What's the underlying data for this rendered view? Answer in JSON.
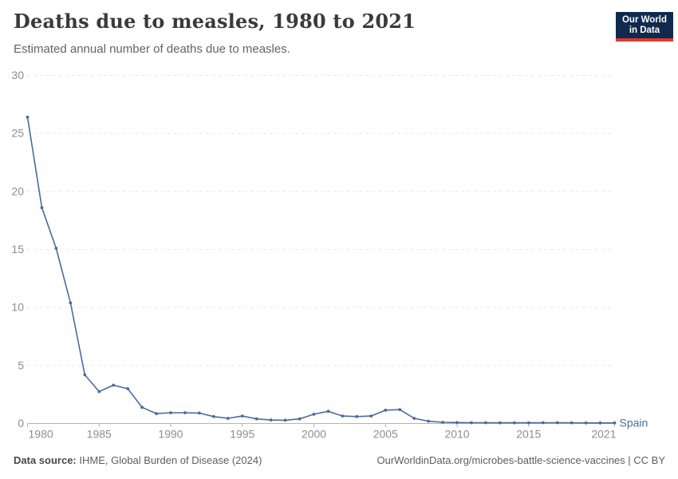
{
  "header": {
    "title": "Deaths due to measles, 1980 to 2021",
    "subtitle": "Estimated annual number of deaths due to measles.",
    "logo": {
      "line1": "Our World",
      "line2": "in Data"
    }
  },
  "chart_data": {
    "type": "line",
    "title": "Deaths due to measles, 1980 to 2021",
    "subtitle": "Estimated annual number of deaths due to measles.",
    "xlabel": "",
    "ylabel": "",
    "xlim": [
      1980,
      2021
    ],
    "ylim": [
      0,
      30
    ],
    "x_ticks": [
      1980,
      1985,
      1990,
      1995,
      2000,
      2005,
      2010,
      2015,
      2021
    ],
    "y_ticks": [
      0,
      5,
      10,
      15,
      20,
      25,
      30
    ],
    "grid": "horizontal-dashed",
    "legend_position": "end-of-line",
    "x": [
      1980,
      1981,
      1982,
      1983,
      1984,
      1985,
      1986,
      1987,
      1988,
      1989,
      1990,
      1991,
      1992,
      1993,
      1994,
      1995,
      1996,
      1997,
      1998,
      1999,
      2000,
      2001,
      2002,
      2003,
      2004,
      2005,
      2006,
      2007,
      2008,
      2009,
      2010,
      2011,
      2012,
      2013,
      2014,
      2015,
      2016,
      2017,
      2018,
      2019,
      2020,
      2021
    ],
    "series": [
      {
        "name": "Spain",
        "color": "#4c6a9c",
        "values": [
          26.4,
          18.6,
          15.1,
          10.4,
          4.2,
          2.75,
          3.3,
          3.0,
          1.4,
          0.85,
          0.93,
          0.93,
          0.9,
          0.6,
          0.45,
          0.65,
          0.4,
          0.3,
          0.28,
          0.4,
          0.8,
          1.05,
          0.65,
          0.6,
          0.65,
          1.15,
          1.2,
          0.45,
          0.2,
          0.1,
          0.08,
          0.07,
          0.07,
          0.06,
          0.06,
          0.06,
          0.07,
          0.07,
          0.06,
          0.05,
          0.05,
          0.05
        ]
      }
    ]
  },
  "footer": {
    "source_label": "Data source:",
    "source_text": " IHME, Global Burden of Disease (2024)",
    "credit": "OurWorldinData.org/microbes-battle-science-vaccines | CC BY"
  },
  "colors": {
    "line": "#4c6a9c",
    "grid": "#e3e3e3",
    "axis": "#b5b5b5",
    "tick_label": "#8e8e8e",
    "logo_bg": "#102a4e",
    "logo_red": "#dc3d2b"
  }
}
